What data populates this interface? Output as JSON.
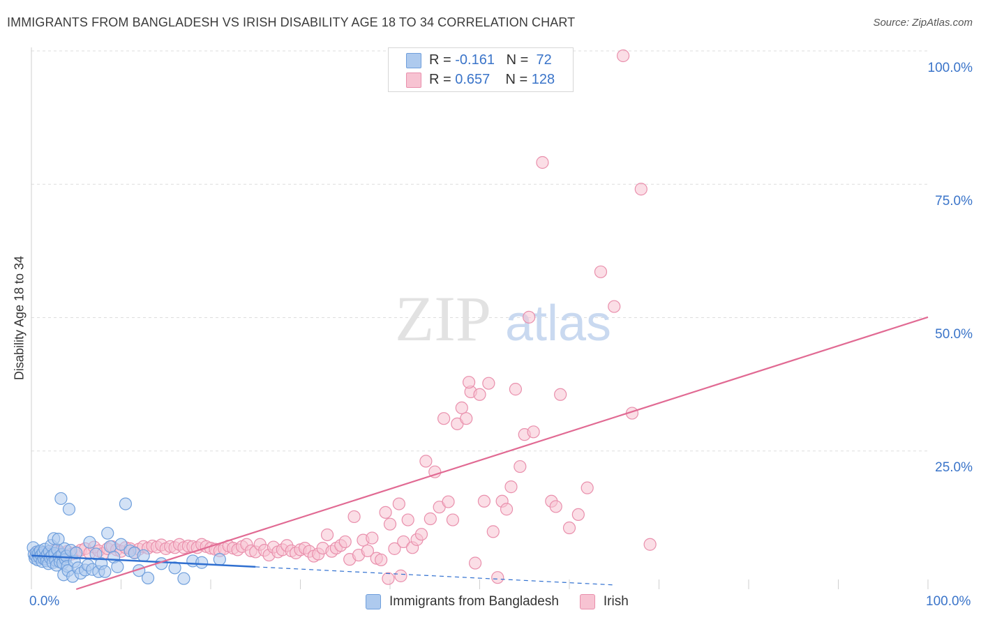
{
  "title": "IMMIGRANTS FROM BANGLADESH VS IRISH DISABILITY AGE 18 TO 34 CORRELATION CHART",
  "source": "Source: ZipAtlas.com",
  "watermark": {
    "zip": "ZIP",
    "atlas": "atlas"
  },
  "legend": {
    "r_label": "R = ",
    "n_label": "N = ",
    "rows": [
      {
        "r": "-0.161",
        "n": "72",
        "color": "#a9c8f0"
      },
      {
        "r": "0.657",
        "n": "128",
        "color": "#f6b8cb"
      }
    ]
  },
  "colors": {
    "blue_fill": "#aecaee",
    "blue_stroke": "#6f9fdc",
    "blue_line": "#2f6fd0",
    "pink_fill": "#f7c3d2",
    "pink_stroke": "#e98fac",
    "pink_line": "#e16a93",
    "grid": "#dddddd",
    "tick_label": "#3a74c9"
  },
  "chart_data": {
    "type": "scatter",
    "title": "IMMIGRANTS FROM BANGLADESH VS IRISH DISABILITY AGE 18 TO 34 CORRELATION CHART",
    "xlabel": "",
    "ylabel": "Disability Age 18 to 34",
    "xlim": [
      0,
      100
    ],
    "ylim": [
      0,
      100
    ],
    "x_tick_labels": [
      "0.0%",
      "100.0%"
    ],
    "y_tick_labels": [
      "25.0%",
      "50.0%",
      "75.0%",
      "100.0%"
    ],
    "y_ticks": [
      25,
      50,
      75,
      100
    ],
    "grid": true,
    "legend_placement": "top-center",
    "series": [
      {
        "name": "Immigrants from Bangladesh",
        "r": -0.161,
        "n": 72,
        "trend": {
          "x0": 0,
          "y0": 6.3,
          "x1": 25,
          "y1": 4.2,
          "dash_to_x": 65,
          "dash_to_y": 0.8
        },
        "points": [
          [
            0.2,
            7.8
          ],
          [
            0.3,
            6.5
          ],
          [
            0.4,
            5.8
          ],
          [
            0.5,
            6.2
          ],
          [
            0.6,
            7.0
          ],
          [
            0.7,
            5.5
          ],
          [
            0.8,
            6.8
          ],
          [
            0.9,
            6.0
          ],
          [
            1.0,
            7.2
          ],
          [
            1.1,
            6.4
          ],
          [
            1.2,
            5.2
          ],
          [
            1.3,
            6.9
          ],
          [
            1.4,
            5.7
          ],
          [
            1.5,
            7.5
          ],
          [
            1.6,
            6.1
          ],
          [
            1.7,
            5.3
          ],
          [
            1.8,
            6.6
          ],
          [
            1.9,
            4.8
          ],
          [
            2.0,
            7.1
          ],
          [
            2.1,
            5.9
          ],
          [
            2.2,
            8.2
          ],
          [
            2.3,
            6.3
          ],
          [
            2.4,
            5.0
          ],
          [
            2.5,
            9.5
          ],
          [
            2.6,
            6.7
          ],
          [
            2.7,
            5.4
          ],
          [
            2.8,
            4.5
          ],
          [
            2.9,
            7.4
          ],
          [
            3.0,
            9.4
          ],
          [
            3.1,
            6.0
          ],
          [
            3.2,
            5.1
          ],
          [
            3.3,
            17.0
          ],
          [
            3.4,
            6.5
          ],
          [
            3.5,
            4.9
          ],
          [
            3.6,
            2.7
          ],
          [
            3.7,
            7.6
          ],
          [
            3.8,
            5.6
          ],
          [
            3.9,
            6.2
          ],
          [
            4.0,
            4.3
          ],
          [
            4.1,
            3.5
          ],
          [
            4.2,
            15.0
          ],
          [
            4.4,
            7.3
          ],
          [
            4.6,
            2.4
          ],
          [
            4.8,
            5.2
          ],
          [
            5.0,
            6.8
          ],
          [
            5.2,
            4.0
          ],
          [
            5.5,
            3.0
          ],
          [
            6.0,
            3.6
          ],
          [
            6.3,
            4.5
          ],
          [
            6.5,
            8.8
          ],
          [
            6.8,
            3.7
          ],
          [
            7.2,
            6.6
          ],
          [
            7.5,
            3.3
          ],
          [
            7.8,
            4.8
          ],
          [
            8.2,
            3.3
          ],
          [
            8.5,
            10.5
          ],
          [
            8.8,
            8.0
          ],
          [
            9.2,
            6.0
          ],
          [
            9.6,
            4.2
          ],
          [
            10.0,
            8.4
          ],
          [
            10.5,
            16.0
          ],
          [
            11.0,
            7.2
          ],
          [
            11.5,
            6.8
          ],
          [
            12.0,
            3.5
          ],
          [
            12.5,
            6.3
          ],
          [
            13.0,
            2.1
          ],
          [
            14.5,
            4.8
          ],
          [
            16.0,
            4.0
          ],
          [
            17.0,
            2.0
          ],
          [
            18.0,
            5.3
          ],
          [
            19.0,
            5.0
          ],
          [
            21.0,
            5.6
          ]
        ]
      },
      {
        "name": "Irish",
        "r": 0.657,
        "n": 128,
        "trend": {
          "x0": 5,
          "y0": 0,
          "x1": 100,
          "y1": 51.0
        },
        "points": [
          [
            0.5,
            6.8
          ],
          [
            1.0,
            6.2
          ],
          [
            1.5,
            6.9
          ],
          [
            2.0,
            6.5
          ],
          [
            2.5,
            7.2
          ],
          [
            3.0,
            7.0
          ],
          [
            3.5,
            6.7
          ],
          [
            4.0,
            7.1
          ],
          [
            4.5,
            6.6
          ],
          [
            5.0,
            6.9
          ],
          [
            5.5,
            7.3
          ],
          [
            6.0,
            7.6
          ],
          [
            6.5,
            6.8
          ],
          [
            7.0,
            7.9
          ],
          [
            7.5,
            7.2
          ],
          [
            8.0,
            6.7
          ],
          [
            8.5,
            7.6
          ],
          [
            9.0,
            8.0
          ],
          [
            9.5,
            7.4
          ],
          [
            10.0,
            7.1
          ],
          [
            10.5,
            7.8
          ],
          [
            11.0,
            7.6
          ],
          [
            11.5,
            6.9
          ],
          [
            12.0,
            7.5
          ],
          [
            12.5,
            8.0
          ],
          [
            13.0,
            7.7
          ],
          [
            13.5,
            8.1
          ],
          [
            14.0,
            7.9
          ],
          [
            14.5,
            8.3
          ],
          [
            15.0,
            7.6
          ],
          [
            15.5,
            8.0
          ],
          [
            16.0,
            7.8
          ],
          [
            16.5,
            8.4
          ],
          [
            17.0,
            7.8
          ],
          [
            17.5,
            8.1
          ],
          [
            18.0,
            8.0
          ],
          [
            18.5,
            7.8
          ],
          [
            19.0,
            8.4
          ],
          [
            19.5,
            8.0
          ],
          [
            20.0,
            7.7
          ],
          [
            20.5,
            7.5
          ],
          [
            21.0,
            7.2
          ],
          [
            21.5,
            7.6
          ],
          [
            22.0,
            8.1
          ],
          [
            22.5,
            7.7
          ],
          [
            23.0,
            7.4
          ],
          [
            23.5,
            8.0
          ],
          [
            24.0,
            8.4
          ],
          [
            24.5,
            7.2
          ],
          [
            25.0,
            7.0
          ],
          [
            25.5,
            8.4
          ],
          [
            26.0,
            7.3
          ],
          [
            26.5,
            6.4
          ],
          [
            27.0,
            7.9
          ],
          [
            27.5,
            7.0
          ],
          [
            28.0,
            7.4
          ],
          [
            28.5,
            8.2
          ],
          [
            29.0,
            7.2
          ],
          [
            29.5,
            6.8
          ],
          [
            30.0,
            7.4
          ],
          [
            30.5,
            7.7
          ],
          [
            31.0,
            7.1
          ],
          [
            31.5,
            6.2
          ],
          [
            32.0,
            6.6
          ],
          [
            32.5,
            7.7
          ],
          [
            33.0,
            10.2
          ],
          [
            33.5,
            7.1
          ],
          [
            34.0,
            7.7
          ],
          [
            34.5,
            8.2
          ],
          [
            35.0,
            8.9
          ],
          [
            35.5,
            5.6
          ],
          [
            36.0,
            13.6
          ],
          [
            36.5,
            6.4
          ],
          [
            37.0,
            9.2
          ],
          [
            37.5,
            7.2
          ],
          [
            38.0,
            9.6
          ],
          [
            38.5,
            5.8
          ],
          [
            39.0,
            5.5
          ],
          [
            39.5,
            14.4
          ],
          [
            40.0,
            12.2
          ],
          [
            40.5,
            7.6
          ],
          [
            41.0,
            16.0
          ],
          [
            41.5,
            8.9
          ],
          [
            42.0,
            13.0
          ],
          [
            42.5,
            7.8
          ],
          [
            43.0,
            9.3
          ],
          [
            43.5,
            10.3
          ],
          [
            44.0,
            24.0
          ],
          [
            44.5,
            13.2
          ],
          [
            45.0,
            22.0
          ],
          [
            45.5,
            15.4
          ],
          [
            46.0,
            32.0
          ],
          [
            46.5,
            16.4
          ],
          [
            47.0,
            13.0
          ],
          [
            47.5,
            31.0
          ],
          [
            48.0,
            34.0
          ],
          [
            48.5,
            32.0
          ],
          [
            49.0,
            37.0
          ],
          [
            49.5,
            4.9
          ],
          [
            50.0,
            36.5
          ],
          [
            50.5,
            16.5
          ],
          [
            51.0,
            38.6
          ],
          [
            51.5,
            10.8
          ],
          [
            52.0,
            2.2
          ],
          [
            52.5,
            16.5
          ],
          [
            53.0,
            15.0
          ],
          [
            53.5,
            19.2
          ],
          [
            54.0,
            37.5
          ],
          [
            54.5,
            23.0
          ],
          [
            55.0,
            29.0
          ],
          [
            56.0,
            29.5
          ],
          [
            57.0,
            80.0
          ],
          [
            58.0,
            16.5
          ],
          [
            58.5,
            15.5
          ],
          [
            59.0,
            36.5
          ],
          [
            60.0,
            11.5
          ],
          [
            61.0,
            14.0
          ],
          [
            62.0,
            19.0
          ],
          [
            63.5,
            59.5
          ],
          [
            65.0,
            53.0
          ],
          [
            66.0,
            100.0
          ],
          [
            67.0,
            33.0
          ],
          [
            68.0,
            75.0
          ],
          [
            69.0,
            8.4
          ],
          [
            41.2,
            2.5
          ],
          [
            39.8,
            2.0
          ],
          [
            48.8,
            38.8
          ],
          [
            55.5,
            51.0
          ]
        ]
      }
    ]
  },
  "bottom_legend": [
    {
      "label": "Immigrants from Bangladesh",
      "color": "#aecaee"
    },
    {
      "label": "Irish",
      "color": "#f7c3d2"
    }
  ]
}
